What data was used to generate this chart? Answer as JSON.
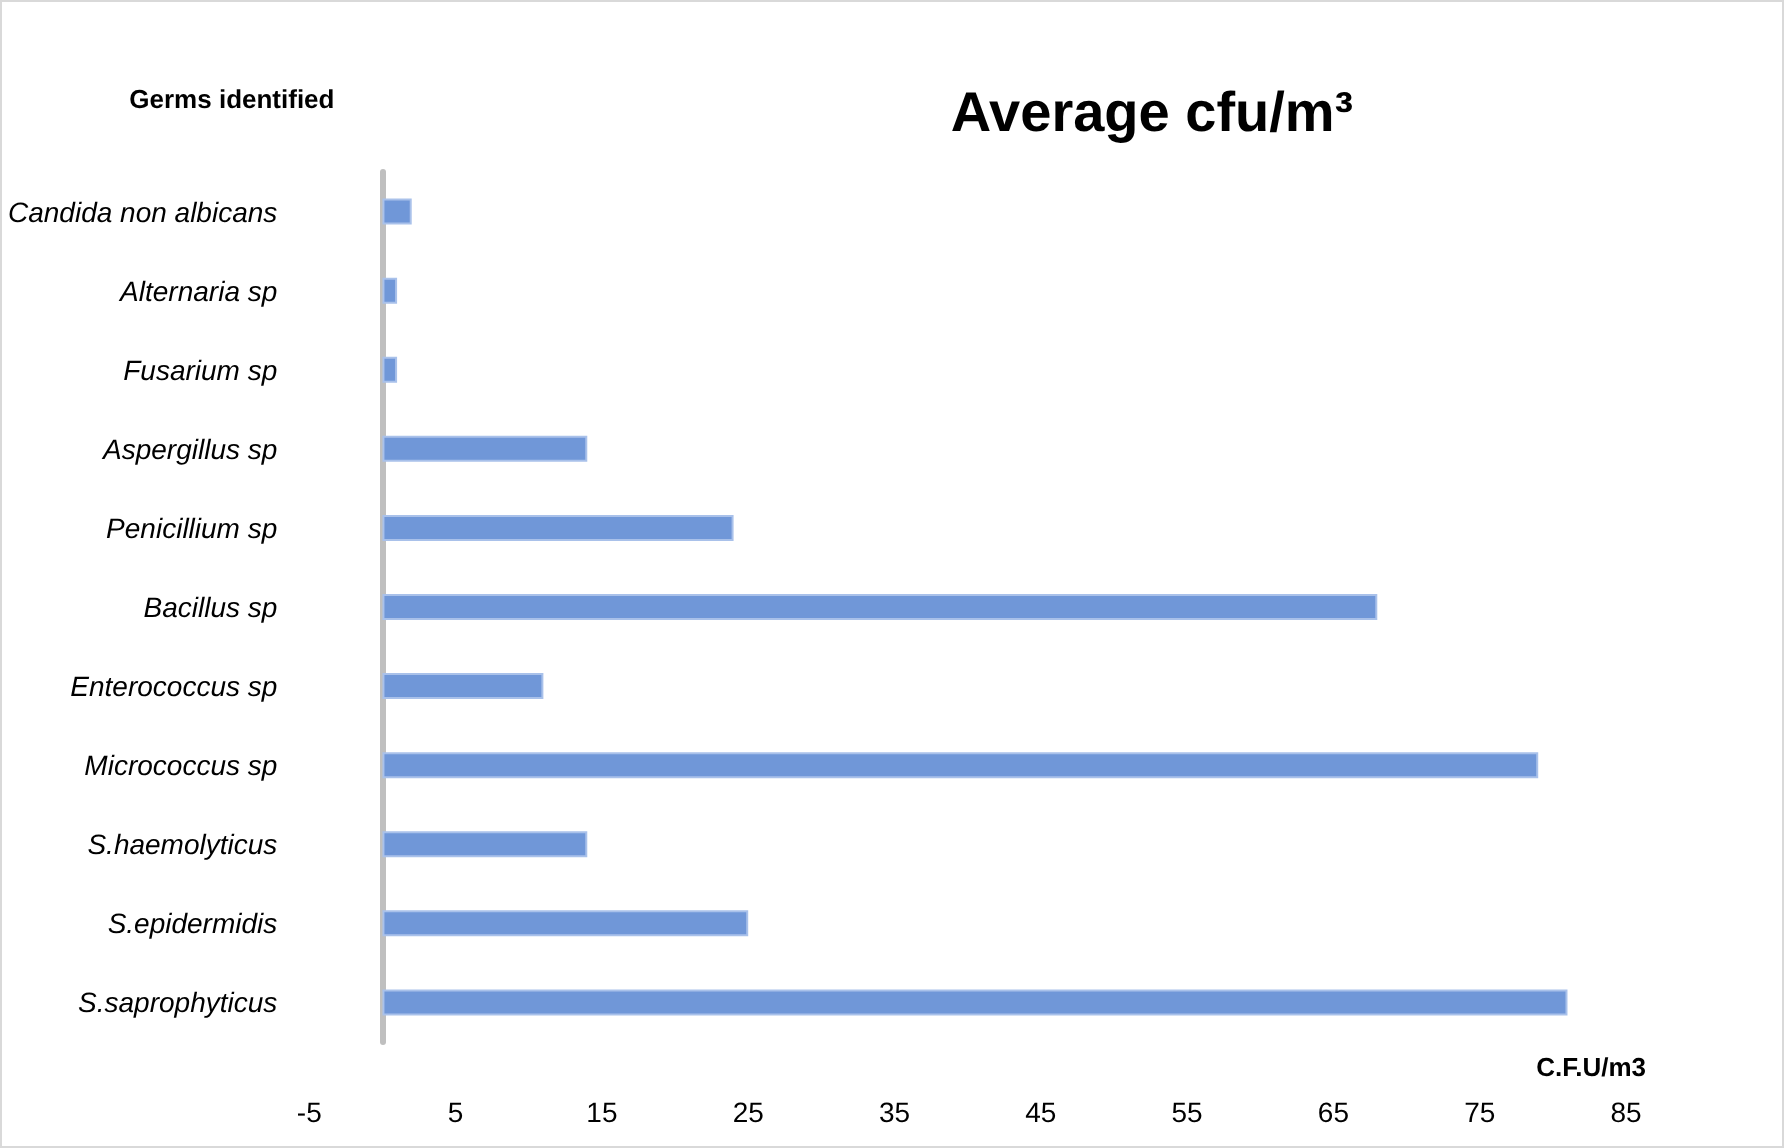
{
  "chart_data": {
    "type": "bar",
    "orientation": "horizontal",
    "title": "Average cfu/m³",
    "xlabel": "C.F.U/m3",
    "ylabel": "Germs identified",
    "categories": [
      "Candida non albicans",
      "Alternaria sp",
      "Fusarium sp",
      "Aspergillus sp",
      "Penicillium sp",
      "Bacillus sp",
      "Enterococcus sp",
      "Micrococcus sp",
      "S.haemolyticus",
      "S.epidermidis",
      "S.saprophyticus"
    ],
    "values": [
      2,
      1,
      1,
      14,
      24,
      68,
      11,
      79,
      14,
      25,
      81
    ],
    "color": "#7097d8",
    "xlim": [
      -5,
      85
    ],
    "xticks": [
      -5,
      5,
      15,
      25,
      35,
      45,
      55,
      65,
      75,
      85
    ],
    "grid": false
  }
}
